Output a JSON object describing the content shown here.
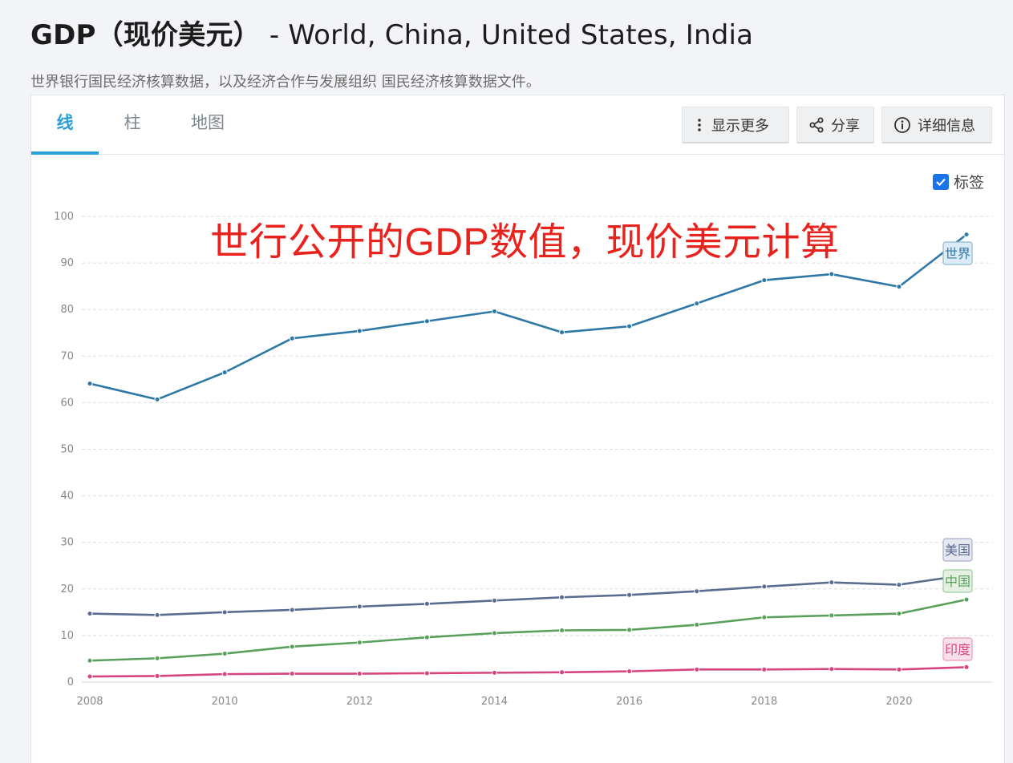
{
  "header": {
    "title_main": "GDP（现价美元）",
    "title_countries": " - World, China, United States, India",
    "subtitle": "世界银行国民经济核算数据，以及经济合作与发展组织 国民经济核算数据文件。"
  },
  "tabs": [
    {
      "label": "线",
      "active": true
    },
    {
      "label": "柱",
      "active": false
    },
    {
      "label": "地图",
      "active": false
    }
  ],
  "toolbar": {
    "show_more_label": "显示更多",
    "share_label": "分享",
    "details_label": "详细信息"
  },
  "labels_toggle": {
    "label": "标签",
    "checked": true
  },
  "annotation": "世行公开的GDP数值，现价美元计算",
  "chart_data": {
    "type": "line",
    "x": [
      2008,
      2009,
      2010,
      2011,
      2012,
      2013,
      2014,
      2015,
      2016,
      2017,
      2018,
      2019,
      2020,
      2021
    ],
    "xticks": [
      "2008",
      "2010",
      "2012",
      "2014",
      "2016",
      "2018",
      "2020"
    ],
    "ylim": [
      0,
      100
    ],
    "yticks": [
      "0",
      "10",
      "20",
      "30",
      "40",
      "50",
      "60",
      "70",
      "80",
      "90",
      "100"
    ],
    "grid": true,
    "series": [
      {
        "name": "世界",
        "color": "#2e78a6",
        "label_bg": "#dcebf5",
        "label_border": "#8bb9d6",
        "values": [
          64.1,
          60.7,
          66.5,
          73.8,
          75.4,
          77.5,
          79.6,
          75.1,
          76.4,
          81.3,
          86.3,
          87.6,
          84.9,
          96.1
        ]
      },
      {
        "name": "美国",
        "color": "#5b6c91",
        "label_bg": "#e6e8f1",
        "label_border": "#a8b0c9",
        "values": [
          14.7,
          14.4,
          15.0,
          15.5,
          16.2,
          16.8,
          17.5,
          18.2,
          18.7,
          19.5,
          20.5,
          21.4,
          20.9,
          23.0
        ]
      },
      {
        "name": "中国",
        "color": "#5aa05c",
        "label_bg": "#e3f0e2",
        "label_border": "#9fcb9e",
        "values": [
          4.6,
          5.1,
          6.1,
          7.6,
          8.5,
          9.6,
          10.5,
          11.1,
          11.2,
          12.3,
          13.9,
          14.3,
          14.7,
          17.7
        ]
      },
      {
        "name": "印度",
        "color": "#d6457d",
        "label_bg": "#f9e1eb",
        "label_border": "#e89bb9",
        "values": [
          1.2,
          1.3,
          1.7,
          1.8,
          1.8,
          1.9,
          2.0,
          2.1,
          2.3,
          2.7,
          2.7,
          2.8,
          2.7,
          3.2
        ]
      }
    ]
  }
}
